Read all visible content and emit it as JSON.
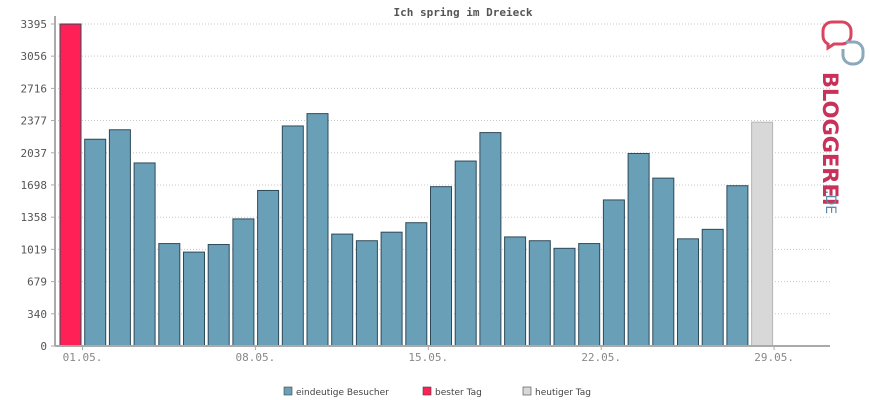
{
  "chart_data": {
    "type": "bar",
    "title": "Ich spring im Dreieck",
    "xlabel": "",
    "ylabel": "",
    "ylim": [
      0,
      3395
    ],
    "yticks": [
      0,
      340,
      679,
      1019,
      1358,
      1698,
      2037,
      2377,
      2716,
      3056,
      3395
    ],
    "grid": true,
    "x_tick_labels": [
      {
        "day": 1,
        "label": "01.05."
      },
      {
        "day": 8,
        "label": "08.05."
      },
      {
        "day": 15,
        "label": "15.05."
      },
      {
        "day": 22,
        "label": "22.05."
      },
      {
        "day": 29,
        "label": "29.05."
      }
    ],
    "days": [
      1,
      2,
      3,
      4,
      5,
      6,
      7,
      8,
      9,
      10,
      11,
      12,
      13,
      14,
      15,
      16,
      17,
      18,
      19,
      20,
      21,
      22,
      23,
      24,
      25,
      26,
      27,
      28,
      29
    ],
    "values": [
      3395,
      2180,
      2280,
      1930,
      1080,
      990,
      1070,
      1340,
      1640,
      2320,
      2450,
      1180,
      1110,
      1200,
      1300,
      1680,
      1950,
      2250,
      1150,
      1110,
      1030,
      1080,
      1540,
      2030,
      1770,
      1130,
      1230,
      1690,
      2360
    ],
    "kinds": [
      "best",
      "normal",
      "normal",
      "normal",
      "normal",
      "normal",
      "normal",
      "normal",
      "normal",
      "normal",
      "normal",
      "normal",
      "normal",
      "normal",
      "normal",
      "normal",
      "normal",
      "normal",
      "normal",
      "normal",
      "normal",
      "normal",
      "normal",
      "normal",
      "normal",
      "normal",
      "normal",
      "normal",
      "today"
    ],
    "legend_placement": "bottom-center",
    "legend": [
      {
        "label": "eindeutige Besucher",
        "color": "#6a9fb8"
      },
      {
        "label": "bester Tag",
        "color": "#ff2055"
      },
      {
        "label": "heutiger Tag",
        "color": "#d8d8d8"
      }
    ],
    "colors": {
      "normal": "#6a9fb8",
      "best": "#ff2055",
      "today": "#d8d8d8",
      "axis": "#aaaaaa",
      "grid": "#c8c8c8"
    }
  },
  "logo": {
    "text": "BLOGGEREI",
    "suffix": ".DE",
    "icon": "bloggerei-logo-icon"
  }
}
